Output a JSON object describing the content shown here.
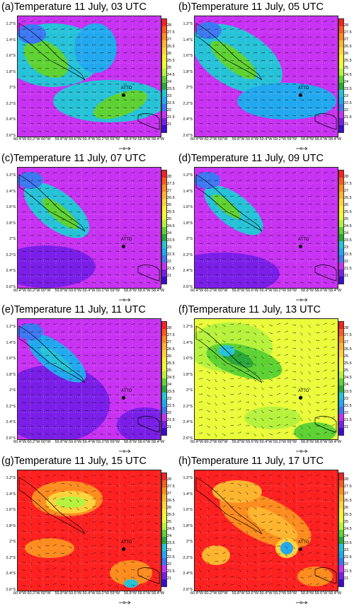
{
  "panels": [
    {
      "title": "(a)Temperature 11 July, 03 UTC",
      "scheme": "cool03"
    },
    {
      "title": "(b)Temperature 11 July, 05 UTC",
      "scheme": "cool05"
    },
    {
      "title": "(c)Temperature 11 July, 07 UTC",
      "scheme": "cool07"
    },
    {
      "title": "(d)Temperature 11 July, 09 UTC",
      "scheme": "cool09"
    },
    {
      "title": "(e)Temperature 11 July, 11 UTC",
      "scheme": "cool11"
    },
    {
      "title": "(f)Temperature 11 July, 13 UTC",
      "scheme": "warm13"
    },
    {
      "title": "(g)Temperature 11 July, 15 UTC",
      "scheme": "hot15"
    },
    {
      "title": "(h)Temperature 11 July, 17 UTC",
      "scheme": "hot17"
    }
  ],
  "lat_ticks": [
    "1.2°S",
    "1.4°S",
    "1.6°S",
    "1.8°S",
    "2°S",
    "2.2°S",
    "2.4°S",
    "2.6°S"
  ],
  "lon_ticks": [
    "60.4°W",
    "60.2°W",
    "60°W",
    "59.8°W",
    "59.6°W",
    "59.4°W",
    "59.2°W",
    "59°W",
    "58.8°W",
    "58.6°W",
    "58.4°W"
  ],
  "colorbar_ticks": [
    "28",
    "27.5",
    "27",
    "26.5",
    "26",
    "25.5",
    "25",
    "24.5",
    "24",
    "23.5",
    "23",
    "22.5",
    "22",
    "21.5",
    "21"
  ],
  "colorbar_colors": [
    "#ff2020",
    "#ff5a1e",
    "#ff8c1e",
    "#ffb42e",
    "#ffd23c",
    "#ffee30",
    "#eafc3a",
    "#b6f23c",
    "#5ed232",
    "#2aa83a",
    "#26c2d8",
    "#22a8ee",
    "#3c78f2",
    "#c832f2",
    "#7a1ee8",
    "#3a0ad6"
  ],
  "vector_ref_label": "5",
  "site_label": "ATTO"
}
